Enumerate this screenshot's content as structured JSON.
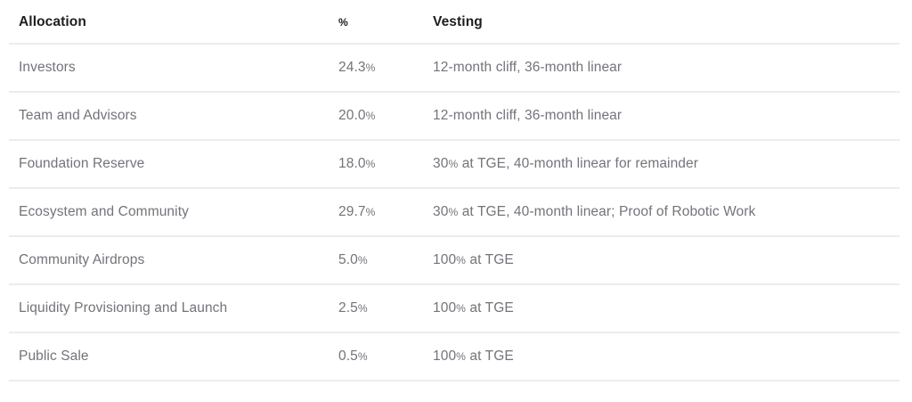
{
  "table": {
    "columns": [
      {
        "id": "allocation",
        "label": "Allocation"
      },
      {
        "id": "pct",
        "label": "%"
      },
      {
        "id": "vesting",
        "label": "Vesting"
      }
    ],
    "rows": [
      {
        "allocation": "Investors",
        "pct": "24.3%",
        "vesting": "12-month cliff, 36-month linear"
      },
      {
        "allocation": "Team and Advisors",
        "pct": "20.0%",
        "vesting": "12-month cliff, 36-month linear"
      },
      {
        "allocation": "Foundation Reserve",
        "pct": "18.0%",
        "vesting": "30% at TGE, 40-month linear for remainder"
      },
      {
        "allocation": "Ecosystem and Community",
        "pct": "29.7%",
        "vesting": "30% at TGE, 40-month linear; Proof of Robotic Work"
      },
      {
        "allocation": "Community Airdrops",
        "pct": "5.0%",
        "vesting": "100% at TGE"
      },
      {
        "allocation": "Liquidity Provisioning and Launch",
        "pct": "2.5%",
        "vesting": "100% at TGE"
      },
      {
        "allocation": "Public Sale",
        "pct": "0.5%",
        "vesting": "100% at TGE"
      }
    ]
  },
  "colors": {
    "header_text": "#1e1e22",
    "body_text": "#73737b",
    "row_border": "#ececec",
    "background": "#ffffff"
  }
}
